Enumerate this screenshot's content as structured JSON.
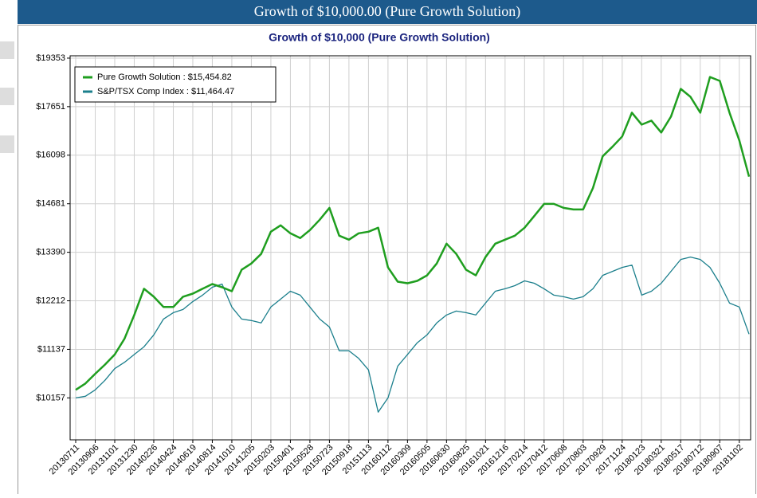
{
  "header_title": "Growth of $10,000.00 (Pure Growth Solution)",
  "chart_data": {
    "type": "line",
    "title": "Growth of $10,000 (Pure Growth Solution)",
    "log_scale": true,
    "grid": true,
    "legend": "upper left",
    "categories": [
      "20130711",
      null,
      "20130906",
      null,
      "20131101",
      null,
      "20131230",
      null,
      "20140226",
      null,
      "20140424",
      null,
      "20140619",
      null,
      "20140814",
      null,
      "20141010",
      null,
      "20141205",
      null,
      "20150203",
      null,
      "20150401",
      null,
      "20150528",
      null,
      "20150723",
      null,
      "20150918",
      null,
      "20151113",
      null,
      "20160112",
      null,
      "20160309",
      null,
      "20160505",
      null,
      "20160630",
      null,
      "20160825",
      null,
      "20161021",
      null,
      "20161216",
      null,
      "20170214",
      null,
      "20170412",
      null,
      "20170608",
      null,
      "20170803",
      null,
      "20170929",
      null,
      "20171124",
      null,
      "20180123",
      null,
      "20180321",
      null,
      "20180517",
      null,
      "20180712",
      null,
      "20180907",
      null,
      "20181102",
      null
    ],
    "series": [
      {
        "name": "Pure Growth Solution : $15,454.82",
        "color": "#1f9e1f",
        "values": [
          10312,
          10438,
          10632,
          10819,
          11028,
          11362,
          11887,
          12493,
          12306,
          12068,
          12068,
          12306,
          12380,
          12493,
          12606,
          12530,
          12436,
          12951,
          13108,
          13347,
          13922,
          14091,
          13880,
          13755,
          13964,
          14241,
          14566,
          13817,
          13714,
          13880,
          13922,
          14028,
          13010,
          12663,
          12625,
          12682,
          12816,
          13108,
          13611,
          13347,
          12951,
          12816,
          13268,
          13611,
          13714,
          13818,
          14028,
          14348,
          14676,
          14676,
          14566,
          14522,
          14522,
          15125,
          16064,
          16357,
          16680,
          17451,
          17060,
          17190,
          16806,
          17320,
          18258,
          17985,
          17451,
          18675,
          18535,
          17451,
          16556,
          15454.82
        ]
      },
      {
        "name": "S&P/TSX Comp Index : $11,464.47",
        "color": "#1b7f8c",
        "values": [
          10157,
          10188,
          10312,
          10502,
          10738,
          10867,
          11028,
          11191,
          11446,
          11797,
          11940,
          12012,
          12195,
          12343,
          12530,
          12606,
          12068,
          11797,
          11762,
          11709,
          12068,
          12250,
          12436,
          12343,
          12068,
          11797,
          11620,
          11108,
          11108,
          10948,
          10712,
          9886,
          10157,
          10786,
          11028,
          11276,
          11446,
          11709,
          11887,
          11976,
          11940,
          11887,
          12158,
          12436,
          12493,
          12568,
          12682,
          12625,
          12493,
          12343,
          12306,
          12250,
          12306,
          12493,
          12816,
          12912,
          13010,
          13068,
          12343,
          12436,
          12625,
          12912,
          13208,
          13268,
          13208,
          13010,
          12625,
          12158,
          12068,
          11464.47
        ]
      }
    ],
    "ylim": [
      9380,
      19440
    ],
    "yticks": [
      {
        "value": 10157,
        "label": "$10157"
      },
      {
        "value": 11137,
        "label": "$11137"
      },
      {
        "value": 12212,
        "label": "$12212"
      },
      {
        "value": 13390,
        "label": "$13390"
      },
      {
        "value": 14681,
        "label": "$14681"
      },
      {
        "value": 16098,
        "label": "$16098"
      },
      {
        "value": 17651,
        "label": "$17651"
      },
      {
        "value": 19353,
        "label": "$19353"
      }
    ]
  }
}
